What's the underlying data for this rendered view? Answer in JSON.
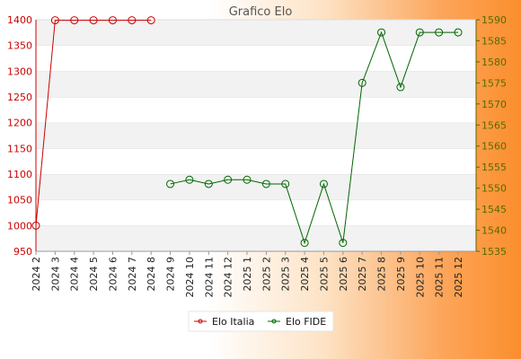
{
  "chart_data": {
    "type": "line",
    "title": "Grafico Elo",
    "categories": [
      "2024 2",
      "2024 3",
      "2024 4",
      "2024 5",
      "2024 6",
      "2024 7",
      "2024 8",
      "2024 9",
      "2024 10",
      "2024 11",
      "2024 12",
      "2025 1",
      "2025 2",
      "2025 3",
      "2025 4",
      "2025 5",
      "2025 6",
      "2025 7",
      "2025 8",
      "2025 9",
      "2025 10",
      "2025 11",
      "2025 12"
    ],
    "y_left": {
      "min": 950,
      "max": 1400,
      "ticks": [
        950,
        1000,
        1050,
        1100,
        1150,
        1200,
        1250,
        1300,
        1350,
        1400
      ]
    },
    "y_right": {
      "min": 1535,
      "max": 1590,
      "ticks": [
        1535,
        1540,
        1545,
        1550,
        1555,
        1560,
        1565,
        1570,
        1575,
        1580,
        1585,
        1590
      ]
    },
    "series": [
      {
        "name": "Elo Italia",
        "axis": "left",
        "color": "#cc0000",
        "values": [
          1000,
          1399,
          1399,
          1399,
          1399,
          1399,
          1399,
          null,
          null,
          null,
          null,
          null,
          null,
          null,
          null,
          null,
          null,
          null,
          null,
          null,
          null,
          null,
          null
        ]
      },
      {
        "name": "Elo FIDE",
        "axis": "right",
        "color": "#006600",
        "values": [
          null,
          null,
          null,
          null,
          null,
          null,
          null,
          1551,
          1552,
          1551,
          1552,
          1552,
          1551,
          1551,
          1537,
          1551,
          1537,
          1575,
          1587,
          1574,
          1587,
          1587,
          1587
        ]
      }
    ],
    "grid": "horizontal alternating bands",
    "legend": "bottom-center"
  }
}
